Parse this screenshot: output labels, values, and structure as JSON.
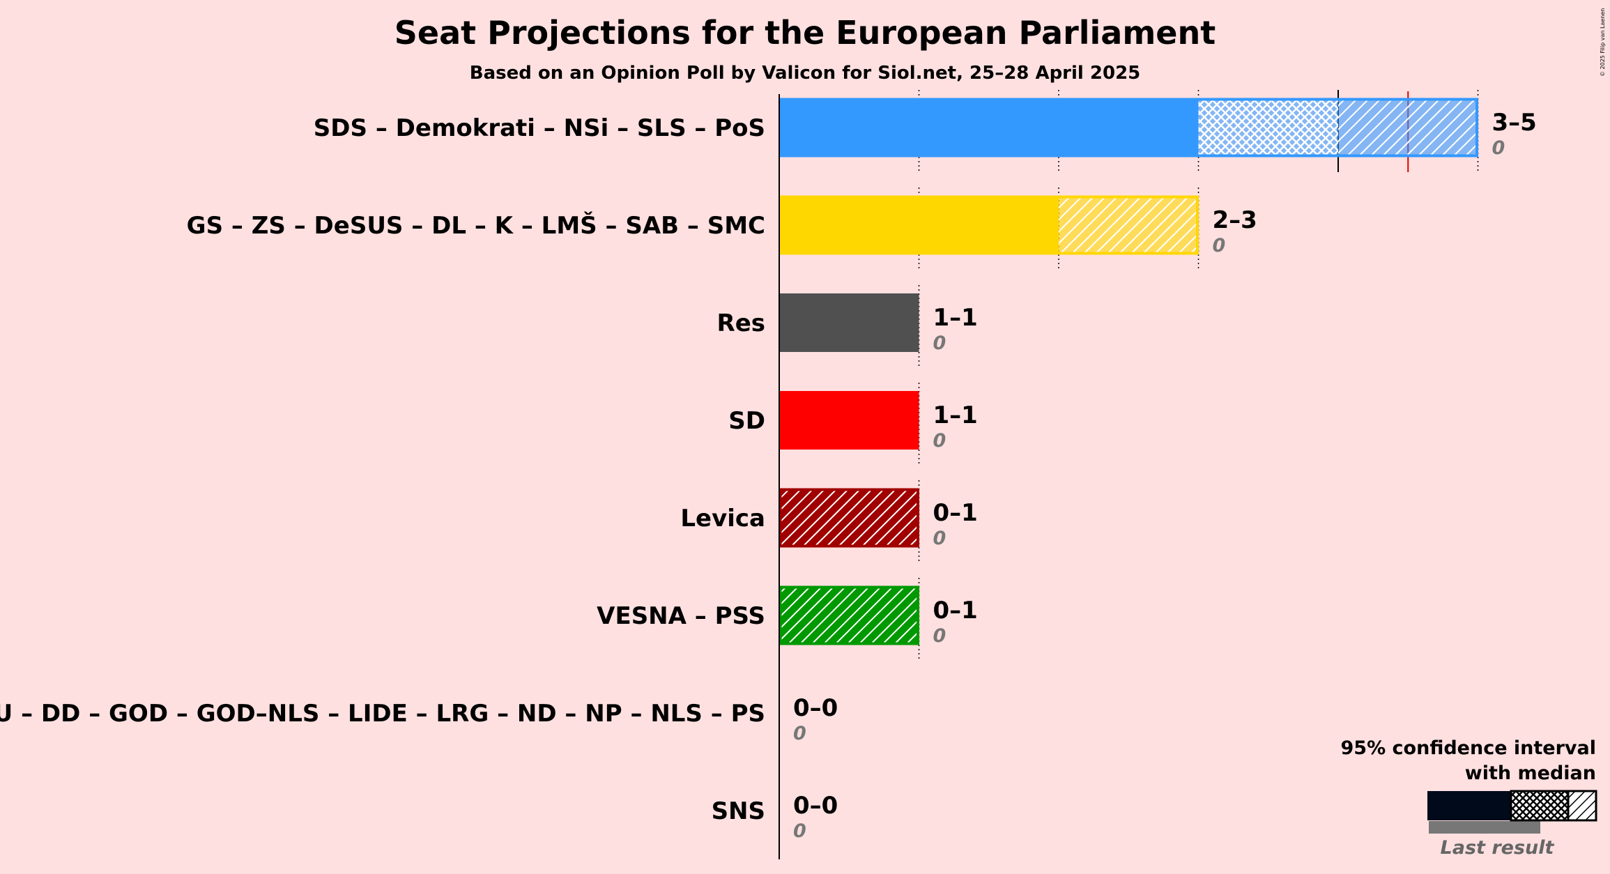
{
  "chart_data": {
    "type": "bar",
    "title": "Seat Projections for the European Parliament",
    "subtitle": "Based on an Opinion Poll by Valicon for Siol.net, 25–28 April 2025",
    "xlim": [
      0,
      5
    ],
    "grid": true,
    "parties": [
      {
        "name": "SDS – Demokrati – NSi – SLS – PoS",
        "low": 3,
        "median": 4,
        "high": 5,
        "ci_label": "3–5",
        "last": 0,
        "last_label": "0",
        "color": "#3399ff"
      },
      {
        "name": "GS – ZS – DeSUS – DL – K – LMŠ – SAB – SMC",
        "low": 2,
        "median": 2,
        "high": 3,
        "ci_label": "2–3",
        "last": 0,
        "last_label": "0",
        "color": "#ffd700"
      },
      {
        "name": "Res",
        "low": 1,
        "median": 1,
        "high": 1,
        "ci_label": "1–1",
        "last": 0,
        "last_label": "0",
        "color": "#505050"
      },
      {
        "name": "SD",
        "low": 1,
        "median": 1,
        "high": 1,
        "ci_label": "1–1",
        "last": 0,
        "last_label": "0",
        "color": "#ff0000"
      },
      {
        "name": "Levica",
        "low": 0,
        "median": 0,
        "high": 1,
        "ci_label": "0–1",
        "last": 0,
        "last_label": "0",
        "color": "#a00000"
      },
      {
        "name": "VESNA – PSS",
        "low": 0,
        "median": 0,
        "high": 1,
        "ci_label": "0–1",
        "last": 0,
        "last_label": "0",
        "color": "#009900"
      },
      {
        "name": "GU – DD – GOD – GOD–NLS – LIDE – LRG – ND – NP – NLS – PS",
        "low": 0,
        "median": 0,
        "high": 0,
        "ci_label": "0–0",
        "last": 0,
        "last_label": "0",
        "color": "#888888"
      },
      {
        "name": "SNS",
        "low": 0,
        "median": 0,
        "high": 0,
        "ci_label": "0–0",
        "last": 0,
        "last_label": "0",
        "color": "#888888"
      }
    ],
    "majority_line": 4.5,
    "legend": {
      "title_line1": "95% confidence interval",
      "title_line2": "with median",
      "last_result": "Last result",
      "position": "bottom-right"
    }
  },
  "copyright": "© 2025 Filip van Laenen"
}
